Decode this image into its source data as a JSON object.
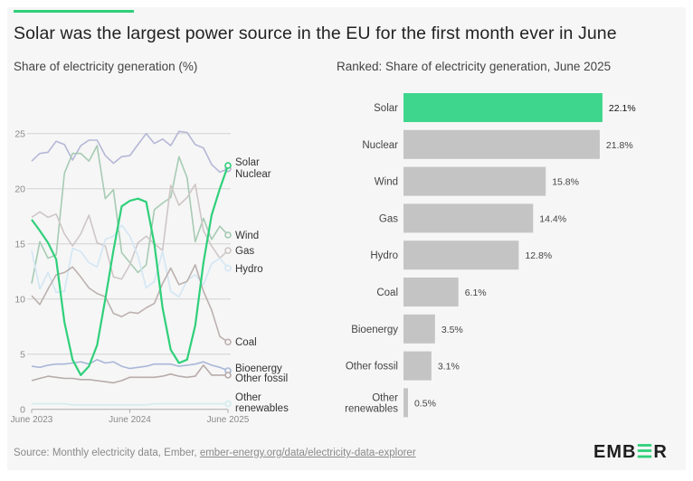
{
  "title": "Solar was the largest power source in the EU for the first month ever in June",
  "source": {
    "prefix": "Source: Monthly electricity data, Ember, ",
    "link": "ember-energy.org/data/electricity-data-explorer"
  },
  "logo": {
    "text": "EMBER"
  },
  "colors": {
    "accent": "#2fd07a",
    "bar_default": "#c4c4c4",
    "bar_highlight": "#3dd68c"
  },
  "chart_data": [
    {
      "type": "line",
      "title": "Share of electricity generation (%)",
      "x": [
        "2023-06",
        "2023-07",
        "2023-08",
        "2023-09",
        "2023-10",
        "2023-11",
        "2023-12",
        "2024-01",
        "2024-02",
        "2024-03",
        "2024-04",
        "2024-05",
        "2024-06",
        "2024-07",
        "2024-08",
        "2024-09",
        "2024-10",
        "2024-11",
        "2024-12",
        "2025-01",
        "2025-02",
        "2025-03",
        "2025-04",
        "2025-05",
        "2025-06"
      ],
      "x_ticks": [
        "June 2023",
        "June 2024",
        "June 2025"
      ],
      "y_ticks": [
        0,
        5,
        10,
        15,
        20,
        25
      ],
      "ylim": [
        0,
        25.5
      ],
      "grid": true,
      "series": [
        {
          "name": "Nuclear",
          "color": "#b5b7d6",
          "values": [
            22.5,
            23.2,
            23.3,
            24.3,
            24.0,
            22.6,
            23.9,
            24.4,
            24.4,
            23.0,
            22.3,
            22.9,
            23.0,
            24.0,
            25.0,
            24.1,
            24.5,
            23.9,
            25.2,
            25.1,
            24.0,
            23.7,
            22.2,
            21.5,
            21.8
          ]
        },
        {
          "name": "Wind",
          "color": "#a6cbb3",
          "values": [
            11.4,
            15.2,
            13.7,
            14.0,
            21.4,
            23.2,
            23.2,
            22.5,
            23.9,
            19.1,
            19.9,
            14.2,
            13.3,
            12.4,
            13.1,
            18.1,
            18.7,
            19.2,
            22.9,
            21.0,
            15.2,
            17.3,
            15.4,
            16.6,
            15.8
          ]
        },
        {
          "name": "Gas",
          "color": "#cfc6c6",
          "values": [
            17.4,
            17.9,
            17.4,
            17.7,
            15.9,
            14.8,
            15.9,
            17.6,
            15.1,
            14.8,
            12.0,
            11.8,
            13.1,
            15.1,
            15.7,
            15.0,
            14.4,
            20.3,
            18.5,
            19.2,
            20.4,
            16.2,
            14.8,
            13.7,
            14.4
          ]
        },
        {
          "name": "Hydro",
          "color": "#d3e6f4",
          "values": [
            14.4,
            10.9,
            12.4,
            10.6,
            10.7,
            14.6,
            14.3,
            13.3,
            12.9,
            15.4,
            15.7,
            16.7,
            15.7,
            13.9,
            11.0,
            11.6,
            14.3,
            10.7,
            10.2,
            11.7,
            12.2,
            11.3,
            13.2,
            13.7,
            12.8
          ]
        },
        {
          "name": "Coal",
          "color": "#bcb1af",
          "values": [
            10.3,
            9.5,
            10.9,
            12.2,
            12.4,
            12.9,
            12.0,
            11.0,
            10.5,
            10.2,
            8.7,
            8.4,
            8.8,
            8.7,
            9.2,
            9.6,
            11.4,
            12.8,
            11.3,
            11.6,
            13.1,
            10.7,
            9.0,
            6.6,
            6.1
          ]
        },
        {
          "name": "Bioenergy",
          "color": "#a9b7d8",
          "values": [
            3.9,
            3.8,
            4.0,
            4.1,
            4.1,
            4.2,
            4.3,
            4.1,
            4.5,
            4.2,
            4.3,
            3.9,
            3.7,
            3.8,
            3.9,
            4.1,
            4.1,
            4.1,
            3.9,
            4.0,
            4.1,
            4.3,
            4.0,
            3.8,
            3.5
          ]
        },
        {
          "name": "Other fossil",
          "color": "#b8abab",
          "values": [
            2.6,
            2.8,
            3.0,
            2.9,
            2.8,
            2.8,
            2.7,
            2.7,
            2.6,
            2.5,
            2.4,
            2.6,
            2.9,
            2.9,
            2.9,
            2.9,
            3.0,
            3.2,
            3.0,
            2.9,
            3.0,
            4.0,
            3.1,
            3.1,
            3.1
          ]
        },
        {
          "name": "Other renewables",
          "color": "#d4ecec",
          "values": [
            0.5,
            0.5,
            0.5,
            0.5,
            0.5,
            0.4,
            0.4,
            0.4,
            0.4,
            0.4,
            0.4,
            0.4,
            0.4,
            0.4,
            0.4,
            0.5,
            0.5,
            0.5,
            0.5,
            0.5,
            0.5,
            0.5,
            0.5,
            0.5,
            0.5
          ]
        },
        {
          "name": "Solar",
          "color": "#2fd07a",
          "values": [
            17.2,
            16.2,
            15.1,
            13.6,
            7.9,
            4.5,
            3.1,
            3.9,
            5.8,
            10.0,
            14.4,
            18.4,
            18.9,
            19.1,
            18.8,
            15.0,
            9.2,
            5.4,
            4.2,
            4.5,
            7.6,
            13.3,
            17.6,
            20.0,
            22.1
          ]
        }
      ],
      "end_labels": [
        "Solar",
        "Nuclear",
        "Wind",
        "Gas",
        "Hydro",
        "Coal",
        "Bioenergy",
        "Other fossil",
        "Other",
        "renewables"
      ]
    },
    {
      "type": "bar",
      "orientation": "horizontal",
      "title": "Ranked: Share of electricity generation, June 2025",
      "categories": [
        "Solar",
        "Nuclear",
        "Wind",
        "Gas",
        "Hydro",
        "Coal",
        "Bioenergy",
        "Other fossil",
        "Other renewables"
      ],
      "category_lines": [
        [
          "Solar"
        ],
        [
          "Nuclear"
        ],
        [
          "Wind"
        ],
        [
          "Gas"
        ],
        [
          "Hydro"
        ],
        [
          "Coal"
        ],
        [
          "Bioenergy"
        ],
        [
          "Other fossil"
        ],
        [
          "Other",
          "renewables"
        ]
      ],
      "values": [
        22.1,
        21.8,
        15.8,
        14.4,
        12.8,
        6.1,
        3.5,
        3.1,
        0.5
      ],
      "value_labels": [
        "22.1%",
        "21.8%",
        "15.8%",
        "14.4%",
        "12.8%",
        "6.1%",
        "3.5%",
        "3.1%",
        "0.5%"
      ],
      "highlight": "Solar"
    }
  ]
}
